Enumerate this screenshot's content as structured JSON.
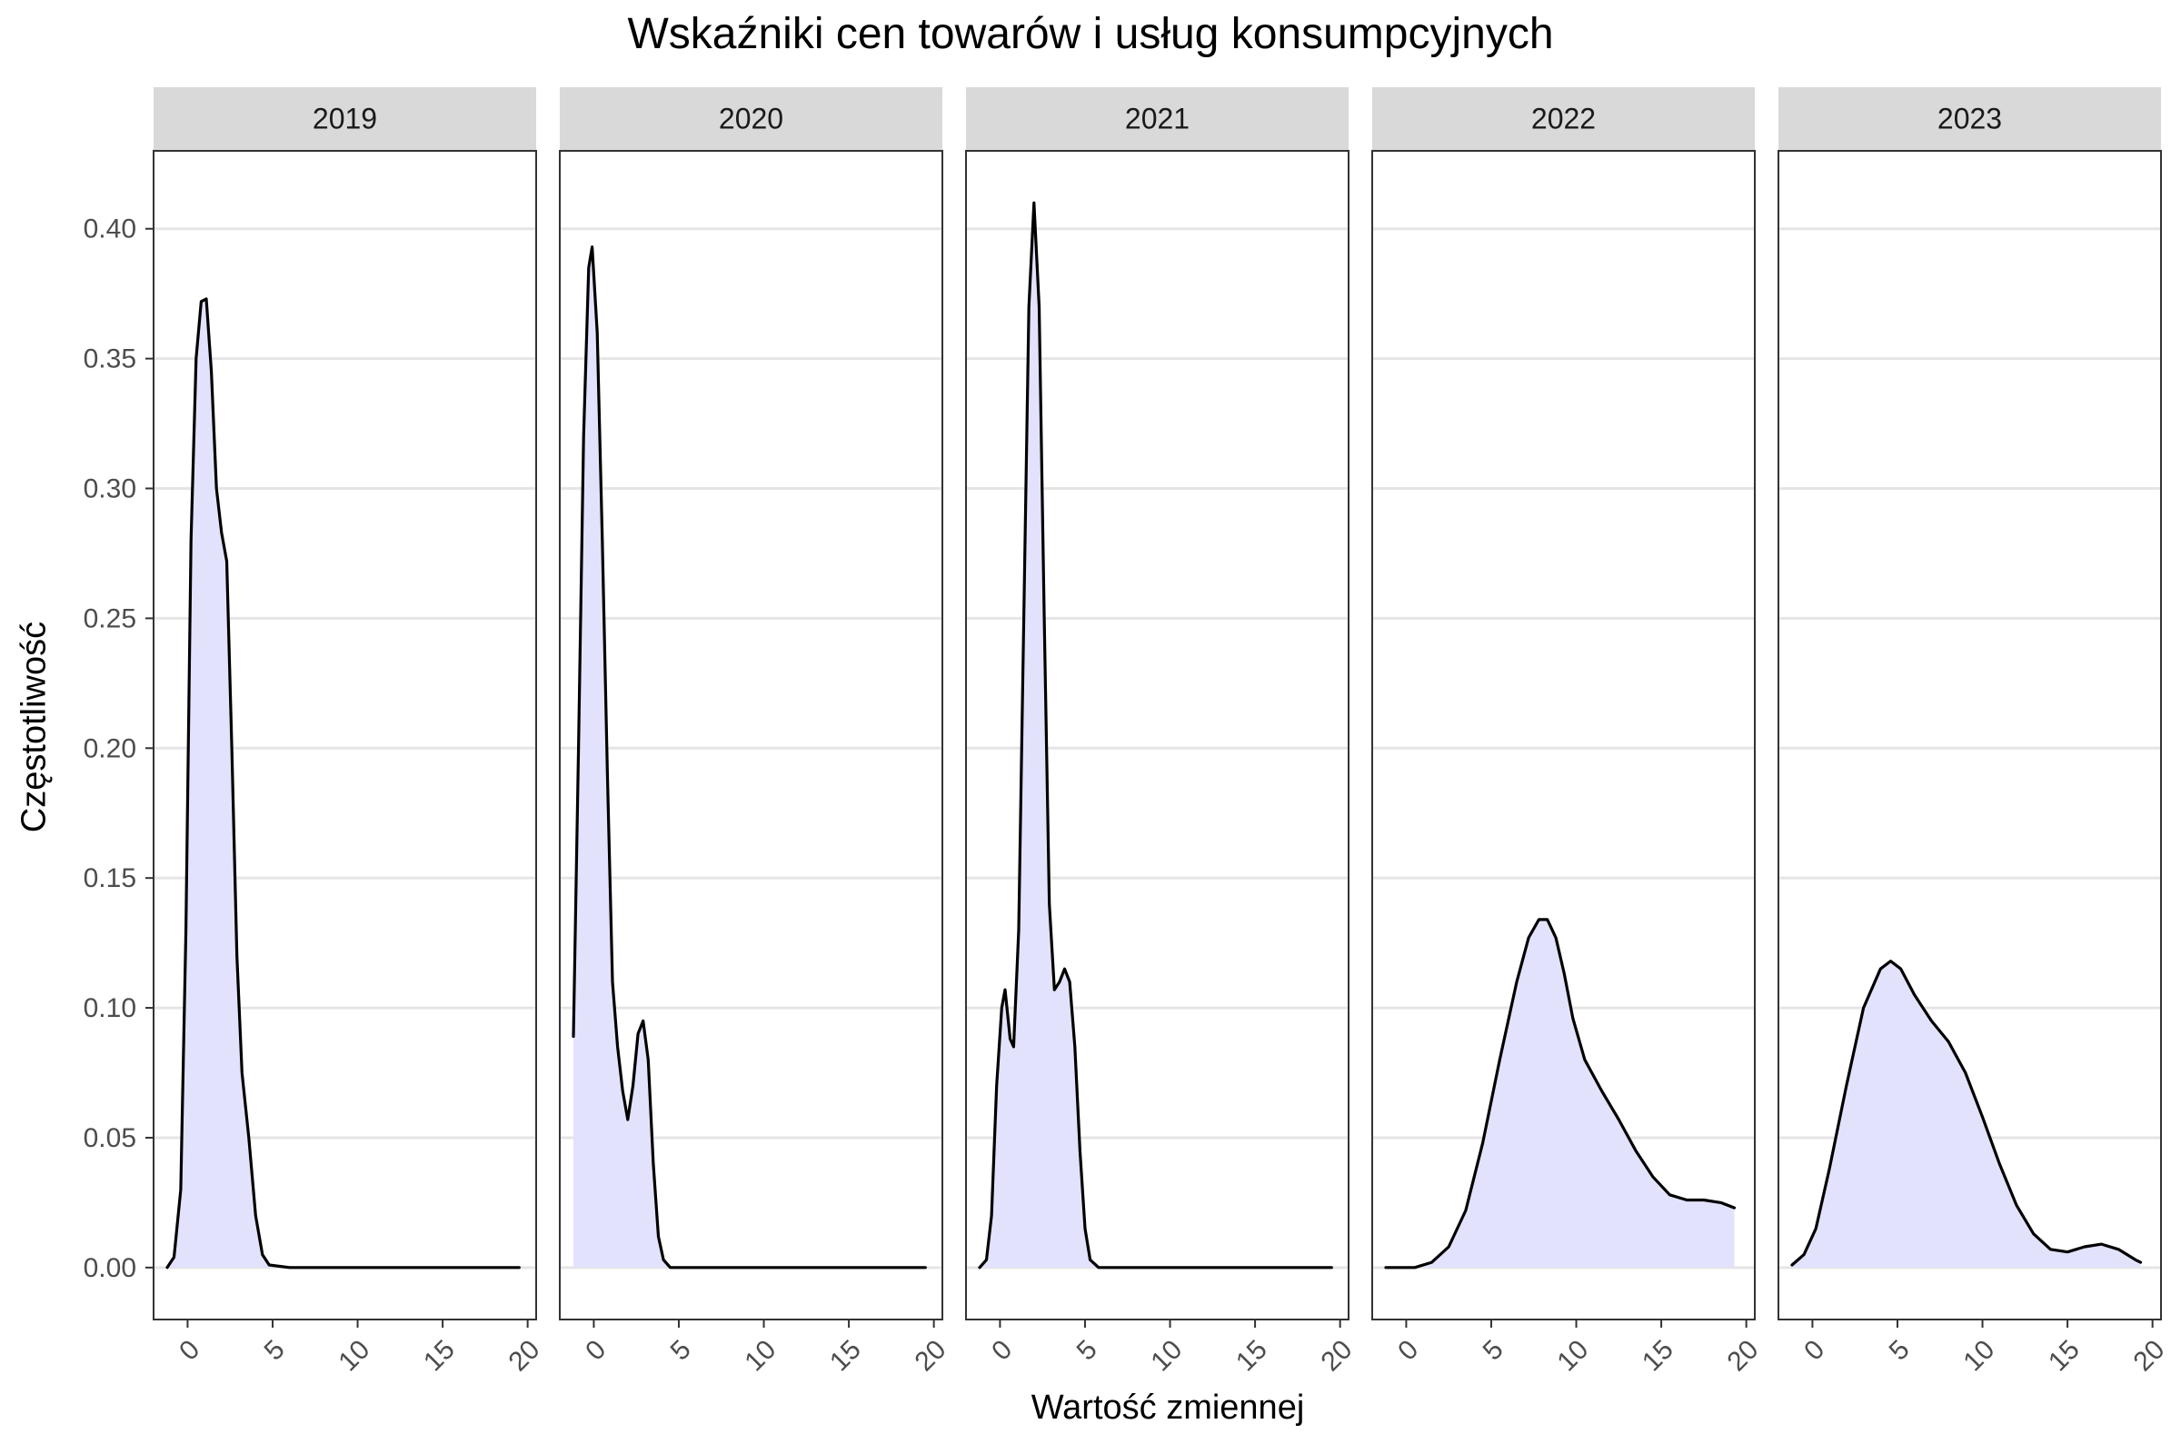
{
  "chart_data": {
    "type": "area",
    "title": "Wskaźniki cen towarów i usług konsumpcyjnych",
    "xlabel": "Wartość zmiennej",
    "ylabel": "Częstotliwość",
    "xlim": [
      -2,
      20.5
    ],
    "ylim": [
      -0.02,
      0.43
    ],
    "x_ticks": [
      "0",
      "5",
      "10",
      "15",
      "20"
    ],
    "x_tick_values": [
      0,
      5,
      10,
      15,
      20
    ],
    "y_ticks": [
      "0.00",
      "0.05",
      "0.10",
      "0.15",
      "0.20",
      "0.25",
      "0.30",
      "0.35",
      "0.40"
    ],
    "y_tick_values": [
      0,
      0.05,
      0.1,
      0.15,
      0.2,
      0.25,
      0.3,
      0.35,
      0.4
    ],
    "grid": true,
    "fill_color": "#e0e0fc",
    "line_color": "#000000",
    "strip_color": "#d9d9d9",
    "gridline_color": "#e5e5e5",
    "panels": [
      {
        "label": "2019",
        "points": [
          [
            -1.2,
            0.0
          ],
          [
            -0.8,
            0.004
          ],
          [
            -0.4,
            0.03
          ],
          [
            -0.1,
            0.13
          ],
          [
            0.2,
            0.28
          ],
          [
            0.5,
            0.35
          ],
          [
            0.8,
            0.372
          ],
          [
            1.1,
            0.373
          ],
          [
            1.4,
            0.345
          ],
          [
            1.7,
            0.3
          ],
          [
            2.0,
            0.283
          ],
          [
            2.3,
            0.272
          ],
          [
            2.6,
            0.2
          ],
          [
            2.9,
            0.12
          ],
          [
            3.2,
            0.075
          ],
          [
            3.6,
            0.05
          ],
          [
            4.0,
            0.02
          ],
          [
            4.4,
            0.005
          ],
          [
            4.8,
            0.001
          ],
          [
            6,
            0.0
          ],
          [
            10,
            0.0
          ],
          [
            15,
            0.0
          ],
          [
            19.5,
            0.0
          ]
        ]
      },
      {
        "label": "2020",
        "points": [
          [
            -1.2,
            0.089
          ],
          [
            -0.9,
            0.2
          ],
          [
            -0.6,
            0.32
          ],
          [
            -0.3,
            0.385
          ],
          [
            -0.1,
            0.393
          ],
          [
            0.2,
            0.36
          ],
          [
            0.5,
            0.28
          ],
          [
            0.8,
            0.19
          ],
          [
            1.1,
            0.11
          ],
          [
            1.4,
            0.085
          ],
          [
            1.7,
            0.068
          ],
          [
            2.0,
            0.057
          ],
          [
            2.3,
            0.07
          ],
          [
            2.6,
            0.09
          ],
          [
            2.9,
            0.095
          ],
          [
            3.2,
            0.08
          ],
          [
            3.5,
            0.04
          ],
          [
            3.8,
            0.012
          ],
          [
            4.1,
            0.003
          ],
          [
            4.5,
            0.0
          ],
          [
            10,
            0.0
          ],
          [
            15,
            0.0
          ],
          [
            19.5,
            0.0
          ]
        ]
      },
      {
        "label": "2021",
        "points": [
          [
            -1.2,
            0.0
          ],
          [
            -0.8,
            0.003
          ],
          [
            -0.5,
            0.02
          ],
          [
            -0.2,
            0.07
          ],
          [
            0.1,
            0.1
          ],
          [
            0.3,
            0.107
          ],
          [
            0.6,
            0.088
          ],
          [
            0.8,
            0.085
          ],
          [
            1.1,
            0.13
          ],
          [
            1.4,
            0.25
          ],
          [
            1.7,
            0.37
          ],
          [
            2.0,
            0.41
          ],
          [
            2.3,
            0.37
          ],
          [
            2.6,
            0.25
          ],
          [
            2.9,
            0.14
          ],
          [
            3.2,
            0.107
          ],
          [
            3.5,
            0.11
          ],
          [
            3.8,
            0.115
          ],
          [
            4.1,
            0.11
          ],
          [
            4.4,
            0.085
          ],
          [
            4.7,
            0.045
          ],
          [
            5.0,
            0.015
          ],
          [
            5.3,
            0.003
          ],
          [
            5.8,
            0.0
          ],
          [
            10,
            0.0
          ],
          [
            15,
            0.0
          ],
          [
            19.5,
            0.0
          ]
        ]
      },
      {
        "label": "2022",
        "points": [
          [
            -1.2,
            0.0
          ],
          [
            0.5,
            0.0
          ],
          [
            1.5,
            0.002
          ],
          [
            2.5,
            0.008
          ],
          [
            3.5,
            0.022
          ],
          [
            4.5,
            0.048
          ],
          [
            5.5,
            0.08
          ],
          [
            6.5,
            0.11
          ],
          [
            7.2,
            0.127
          ],
          [
            7.8,
            0.134
          ],
          [
            8.3,
            0.134
          ],
          [
            8.8,
            0.127
          ],
          [
            9.3,
            0.113
          ],
          [
            9.8,
            0.096
          ],
          [
            10.5,
            0.08
          ],
          [
            11.5,
            0.068
          ],
          [
            12.5,
            0.057
          ],
          [
            13.5,
            0.045
          ],
          [
            14.5,
            0.035
          ],
          [
            15.5,
            0.028
          ],
          [
            16.5,
            0.026
          ],
          [
            17.5,
            0.026
          ],
          [
            18.5,
            0.025
          ],
          [
            19.3,
            0.023
          ]
        ]
      },
      {
        "label": "2023",
        "points": [
          [
            -1.2,
            0.001
          ],
          [
            -0.5,
            0.005
          ],
          [
            0.2,
            0.015
          ],
          [
            1.0,
            0.038
          ],
          [
            2.0,
            0.07
          ],
          [
            3.0,
            0.1
          ],
          [
            4.0,
            0.115
          ],
          [
            4.6,
            0.118
          ],
          [
            5.2,
            0.115
          ],
          [
            6.0,
            0.105
          ],
          [
            7.0,
            0.095
          ],
          [
            8.0,
            0.087
          ],
          [
            9.0,
            0.075
          ],
          [
            10.0,
            0.058
          ],
          [
            11.0,
            0.04
          ],
          [
            12.0,
            0.024
          ],
          [
            13.0,
            0.013
          ],
          [
            14.0,
            0.007
          ],
          [
            15.0,
            0.006
          ],
          [
            16.0,
            0.008
          ],
          [
            17.0,
            0.009
          ],
          [
            18.0,
            0.007
          ],
          [
            19.0,
            0.003
          ],
          [
            19.3,
            0.002
          ]
        ]
      }
    ]
  }
}
